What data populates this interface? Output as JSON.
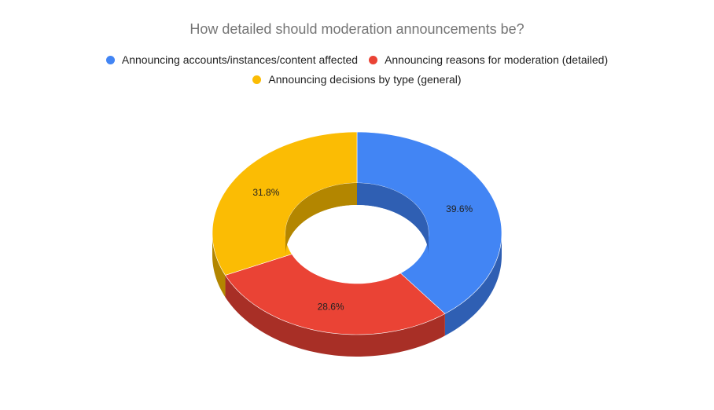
{
  "chart_data": {
    "type": "pie",
    "variant": "3d-donut",
    "title": "How detailed should moderation announcements be?",
    "slices": [
      {
        "label": "Announcing accounts/instances/content affected",
        "value": 39.6,
        "display": "39.6%",
        "color": "#4285f4",
        "side_color": "#2f5fb3"
      },
      {
        "label": "Announcing reasons for moderation (detailed)",
        "value": 28.6,
        "display": "28.6%",
        "color": "#ea4335",
        "side_color": "#a82f26"
      },
      {
        "label": "Announcing decisions by type (general)",
        "value": 31.8,
        "display": "31.8%",
        "color": "#fbbc04",
        "side_color": "#b38600"
      }
    ],
    "legend_position": "top",
    "legend_rows": [
      [
        0,
        1
      ],
      [
        2
      ]
    ],
    "start_position": "12 o'clock",
    "direction": "clockwise"
  }
}
